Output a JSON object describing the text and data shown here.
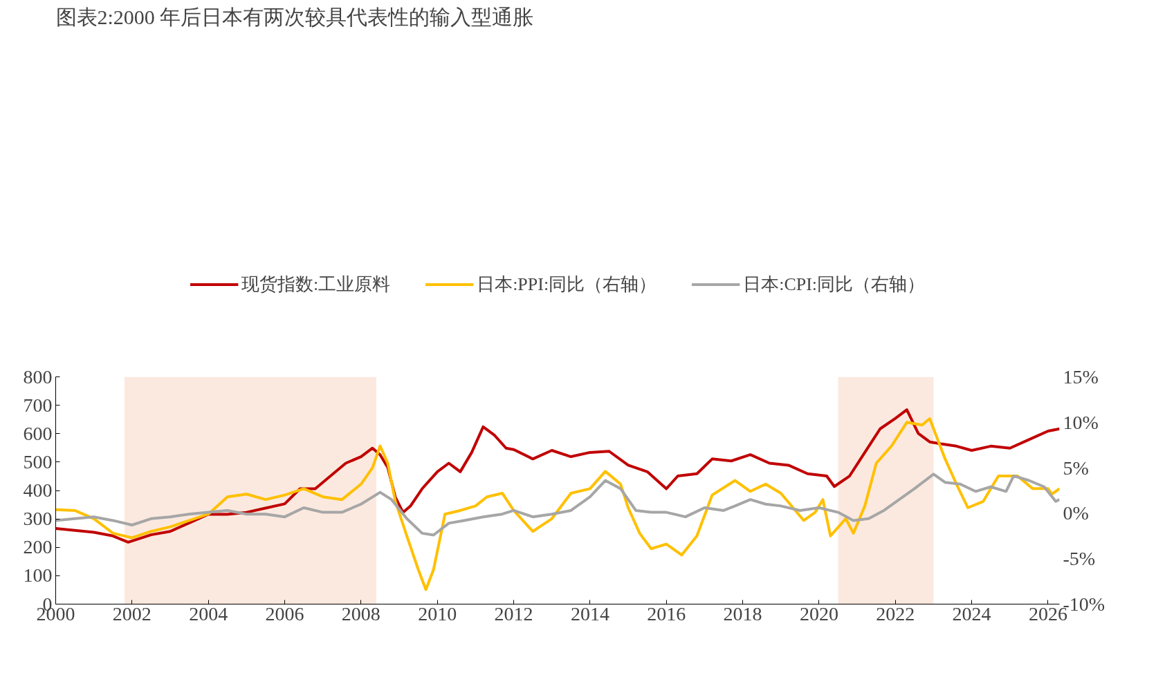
{
  "chart_data": {
    "type": "line",
    "title": "图表2:2000 年后日本有两次较具代表性的输入型通胀",
    "xlim": [
      2000,
      2026.3
    ],
    "xticks": [
      2000,
      2002,
      2004,
      2006,
      2008,
      2010,
      2012,
      2014,
      2016,
      2018,
      2020,
      2022,
      2024,
      2026
    ],
    "ylim": [
      0,
      800
    ],
    "yticks": [
      0,
      100,
      200,
      300,
      400,
      500,
      600,
      700,
      800
    ],
    "y2lim": [
      -10,
      15
    ],
    "y2ticks": [
      {
        "value": -10,
        "label": "-10%"
      },
      {
        "value": -5,
        "label": "-5%"
      },
      {
        "value": 0,
        "label": "0%"
      },
      {
        "value": 5,
        "label": "5%"
      },
      {
        "value": 10,
        "label": "10%"
      },
      {
        "value": 15,
        "label": "15%"
      }
    ],
    "grid": false,
    "legend": "top",
    "marker": "none",
    "line_style": "solid",
    "bands": [
      {
        "axis": "x",
        "from": 2001.8,
        "to": 2008.4,
        "color": "#fbe9df"
      },
      {
        "axis": "x",
        "from": 2020.5,
        "to": 2023.0,
        "color": "#fbe9df"
      }
    ],
    "series": [
      {
        "name": "现货指数:工业原料",
        "color": "#c00000",
        "x": [
          2000,
          2001,
          2001.5,
          2001.9,
          2002.5,
          2003,
          2003.5,
          2004,
          2004.5,
          2005,
          2005.5,
          2006,
          2006.4,
          2006.8,
          2007.2,
          2007.6,
          2008,
          2008.3,
          2008.5,
          2008.7,
          2008.9,
          2009.1,
          2009.3,
          2009.6,
          2010,
          2010.3,
          2010.6,
          2010.9,
          2011.2,
          2011.5,
          2011.8,
          2012,
          2012.5,
          2013,
          2013.5,
          2014,
          2014.5,
          2015,
          2015.5,
          2016,
          2016.3,
          2016.8,
          2017.2,
          2017.7,
          2018.2,
          2018.7,
          2019.2,
          2019.7,
          2020.2,
          2020.4,
          2020.8,
          2021.2,
          2021.6,
          2022,
          2022.3,
          2022.6,
          2022.9,
          2023.2,
          2023.6,
          2024,
          2024.5,
          2025,
          2025.5,
          2026,
          2026.3
        ],
        "values": [
          266,
          253,
          240,
          218,
          244,
          256,
          286,
          316,
          316,
          323,
          338,
          353,
          406,
          406,
          451,
          496,
          519,
          549,
          526,
          481,
          376,
          323,
          346,
          406,
          466,
          496,
          466,
          534,
          624,
          594,
          549,
          544,
          511,
          541,
          519,
          534,
          538,
          489,
          466,
          406,
          451,
          459,
          511,
          504,
          526,
          496,
          489,
          459,
          451,
          414,
          451,
          534,
          617,
          654,
          684,
          601,
          571,
          564,
          556,
          541,
          556,
          549,
          579,
          609,
          617
        ]
      },
      {
        "name": "日本:PPI:同比（右轴）",
        "color": "#ffc000",
        "axis": "y2",
        "x": [
          2000,
          2000.5,
          2001,
          2001.5,
          2002,
          2002.5,
          2003,
          2003.5,
          2004,
          2004.5,
          2005,
          2005.5,
          2006,
          2006.5,
          2007,
          2007.5,
          2008,
          2008.3,
          2008.5,
          2008.7,
          2008.9,
          2009.2,
          2009.5,
          2009.7,
          2009.9,
          2010.2,
          2010.6,
          2011,
          2011.3,
          2011.7,
          2012,
          2012.5,
          2013,
          2013.5,
          2014,
          2014.4,
          2014.8,
          2015,
          2015.3,
          2015.6,
          2016,
          2016.4,
          2016.8,
          2017.2,
          2017.8,
          2018.2,
          2018.6,
          2019,
          2019.6,
          2019.9,
          2020.1,
          2020.3,
          2020.7,
          2020.9,
          2021.2,
          2021.5,
          2021.9,
          2022.3,
          2022.7,
          2022.9,
          2023.3,
          2023.6,
          2023.9,
          2024.3,
          2024.7,
          2025.2,
          2025.6,
          2026,
          2026.1,
          2026.3
        ],
        "values": [
          0.4,
          0.3,
          -0.6,
          -2.2,
          -2.7,
          -2.0,
          -1.5,
          -0.8,
          -0.1,
          1.8,
          2.1,
          1.5,
          2.0,
          2.7,
          1.8,
          1.5,
          3.2,
          5.0,
          7.4,
          5.5,
          1.3,
          -2.5,
          -6.2,
          -8.4,
          -6.2,
          -0.1,
          0.3,
          0.8,
          1.8,
          2.2,
          0.3,
          -2.0,
          -0.6,
          2.2,
          2.7,
          4.6,
          3.2,
          0.6,
          -2.2,
          -3.9,
          -3.4,
          -4.6,
          -2.5,
          2.0,
          3.6,
          2.4,
          3.2,
          2.2,
          -0.8,
          0.1,
          1.5,
          -2.5,
          -0.6,
          -2.2,
          0.8,
          5.5,
          7.4,
          10.0,
          9.7,
          10.4,
          6.0,
          3.2,
          0.6,
          1.3,
          4.1,
          4.1,
          2.7,
          2.7,
          2.1,
          2.7
        ]
      },
      {
        "name": "日本:CPI:同比（右轴）",
        "color": "#a6a6a6",
        "axis": "y2",
        "x": [
          2000,
          2000.5,
          2001,
          2001.5,
          2002,
          2002.5,
          2003,
          2003.5,
          2004,
          2004.5,
          2005,
          2005.5,
          2006,
          2006.5,
          2007,
          2007.5,
          2008,
          2008.5,
          2008.8,
          2009.2,
          2009.6,
          2009.9,
          2010.3,
          2010.7,
          2011.2,
          2011.7,
          2012,
          2012.5,
          2013,
          2013.5,
          2014,
          2014.4,
          2014.8,
          2015.2,
          2015.6,
          2016,
          2016.5,
          2017,
          2017.5,
          2017.8,
          2018.2,
          2018.6,
          2019,
          2019.5,
          2020,
          2020.5,
          2020.9,
          2021.3,
          2021.7,
          2022.1,
          2022.5,
          2023,
          2023.3,
          2023.7,
          2024.1,
          2024.5,
          2024.9,
          2025.1,
          2025.5,
          2025.9,
          2026.2,
          2026.3
        ],
        "values": [
          -0.8,
          -0.6,
          -0.4,
          -0.8,
          -1.3,
          -0.6,
          -0.4,
          -0.1,
          0.1,
          0.3,
          -0.1,
          -0.1,
          -0.4,
          0.6,
          0.1,
          0.1,
          1.0,
          2.3,
          1.5,
          -0.6,
          -2.2,
          -2.4,
          -1.1,
          -0.8,
          -0.4,
          -0.1,
          0.3,
          -0.4,
          -0.1,
          0.3,
          1.8,
          3.6,
          2.7,
          0.3,
          0.1,
          0.1,
          -0.4,
          0.6,
          0.3,
          0.8,
          1.5,
          1.0,
          0.8,
          0.3,
          0.6,
          0.1,
          -0.8,
          -0.6,
          0.3,
          1.5,
          2.7,
          4.3,
          3.4,
          3.2,
          2.4,
          2.9,
          2.4,
          4.1,
          3.6,
          2.9,
          1.3,
          1.5
        ]
      }
    ]
  }
}
